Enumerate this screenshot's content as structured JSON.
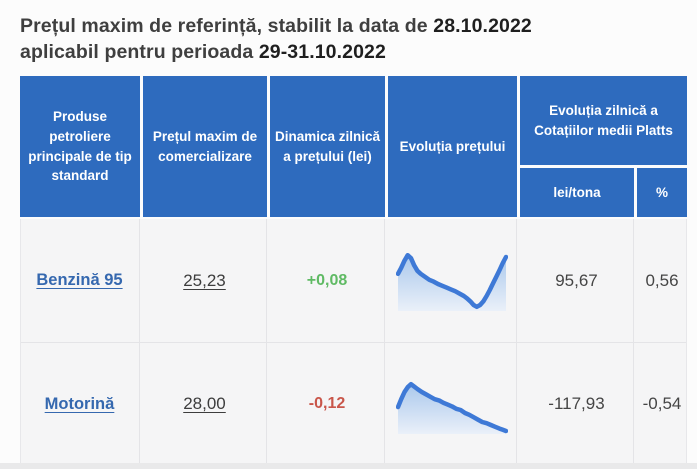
{
  "title": {
    "part1": "Prețul maxim de referință, stabilit la data de ",
    "date1": "28.10.2022",
    "part2": "aplicabil pentru perioada ",
    "date2": "29-31.10.2022"
  },
  "table": {
    "headers": {
      "products": "Produse petroliere principale de tip standard",
      "max_price": "Prețul maxim de comercializare",
      "dynamics": "Dinamica zilnică a prețului (lei)",
      "evolution": "Evoluția prețului",
      "platts_group": "Evoluția zilnică a Cotațiilor medii Platts",
      "platts_lei": "lei/tona",
      "platts_pct": "%"
    },
    "rows": [
      {
        "product": "Benzină 95",
        "max_price": "25,23",
        "daily_change": "+0,08",
        "platts_lei": "95,67",
        "platts_pct": "0,56"
      },
      {
        "product": "Motorină",
        "max_price": "28,00",
        "daily_change": "-0,12",
        "platts_lei": "-117,93",
        "platts_pct": "-0,54"
      }
    ]
  },
  "colors": {
    "header_bg": "#2e6bbe",
    "positive": "#5fba64",
    "negative": "#c9564a",
    "link": "#3568af",
    "spark_stroke": "#3e79d6",
    "spark_fill_top": "#aac8ec",
    "spark_fill_bottom": "#eaf0f9"
  },
  "chart_data": [
    {
      "type": "area",
      "title": "Evoluția prețului — Benzină 95",
      "legend": "none",
      "axes": "none (sparkline)",
      "x": "time, normalized 0–100",
      "y": "relative price, normalized 0–100",
      "points": [
        [
          0,
          62
        ],
        [
          3,
          72
        ],
        [
          6,
          84
        ],
        [
          9,
          93
        ],
        [
          12,
          88
        ],
        [
          15,
          76
        ],
        [
          18,
          67
        ],
        [
          21,
          62
        ],
        [
          25,
          57
        ],
        [
          29,
          52
        ],
        [
          33,
          49
        ],
        [
          37,
          45
        ],
        [
          41,
          42
        ],
        [
          45,
          39
        ],
        [
          49,
          36
        ],
        [
          53,
          33
        ],
        [
          57,
          29
        ],
        [
          61,
          25
        ],
        [
          64,
          21
        ],
        [
          67,
          16
        ],
        [
          70,
          10
        ],
        [
          73,
          7
        ],
        [
          76,
          10
        ],
        [
          79,
          16
        ],
        [
          82,
          25
        ],
        [
          85,
          35
        ],
        [
          88,
          46
        ],
        [
          91,
          57
        ],
        [
          94,
          68
        ],
        [
          97,
          80
        ],
        [
          100,
          90
        ]
      ]
    },
    {
      "type": "area",
      "title": "Evoluția prețului — Motorină",
      "legend": "none",
      "axes": "none (sparkline)",
      "x": "time, normalized 0–100",
      "y": "relative price, normalized 0–100",
      "points": [
        [
          0,
          45
        ],
        [
          3,
          58
        ],
        [
          6,
          70
        ],
        [
          9,
          78
        ],
        [
          12,
          83
        ],
        [
          15,
          79
        ],
        [
          18,
          75
        ],
        [
          22,
          70
        ],
        [
          26,
          66
        ],
        [
          30,
          62
        ],
        [
          34,
          58
        ],
        [
          38,
          56
        ],
        [
          42,
          52
        ],
        [
          46,
          49
        ],
        [
          50,
          46
        ],
        [
          54,
          42
        ],
        [
          58,
          40
        ],
        [
          62,
          35
        ],
        [
          66,
          32
        ],
        [
          70,
          28
        ],
        [
          74,
          24
        ],
        [
          78,
          20
        ],
        [
          82,
          18
        ],
        [
          86,
          15
        ],
        [
          90,
          12
        ],
        [
          94,
          9
        ],
        [
          97,
          7
        ],
        [
          100,
          5
        ]
      ]
    }
  ]
}
